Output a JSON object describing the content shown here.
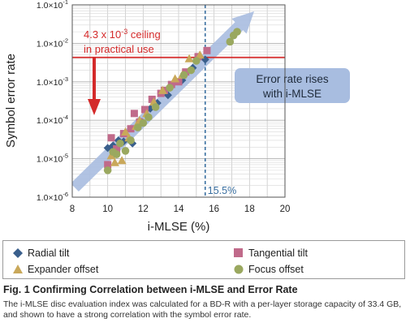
{
  "chart_data": {
    "type": "scatter",
    "xlabel": "i-MLSE (%)",
    "ylabel": "Symbol error rate",
    "x_ticks": [
      "8",
      "10",
      "12",
      "14",
      "16",
      "18",
      "20"
    ],
    "y_tick_labels": [
      {
        "exp": -1,
        "label": "1.0×10",
        "sup": "-1"
      },
      {
        "exp": -2,
        "label": "1.0×10",
        "sup": "-2"
      },
      {
        "exp": -3,
        "label": "1.0×10",
        "sup": "-3"
      },
      {
        "exp": -4,
        "label": "1.0×10",
        "sup": "-4"
      },
      {
        "exp": -5,
        "label": "1.0×10",
        "sup": "-5"
      },
      {
        "exp": -6,
        "label": "1.0×10",
        "sup": "-6"
      }
    ],
    "xlim": [
      8,
      20
    ],
    "ylim": [
      1e-06,
      0.1
    ],
    "y_scale": "log",
    "grid": true,
    "legend_position": "below",
    "ceiling_value": 0.0043,
    "ceiling_text_line1": "4.3 x 10",
    "ceiling_text_sup": "-3",
    "ceiling_text_suffix": " ceiling",
    "ceiling_text_line2": "in practical use",
    "threshold_x": 15.5,
    "threshold_label": "15.5%",
    "trend_label_line1": "Error rate rises",
    "trend_label_line2": "with i-MLSE",
    "colors": {
      "radial": "#3a5f8c",
      "tangential": "#c06a8a",
      "expander": "#c9a85a",
      "focus": "#9aa85f",
      "ceiling": "#d42a2a",
      "threshold": "#3a6fa0",
      "trend": "#a8bde0"
    },
    "series": [
      {
        "name": "Radial tilt",
        "marker": "diamond",
        "points": [
          [
            10.0,
            1.9e-05
          ],
          [
            10.3,
            2.2e-05
          ],
          [
            10.6,
            3e-05
          ],
          [
            11.4,
            2.5e-05
          ],
          [
            11.9,
            9e-05
          ],
          [
            12.4,
            0.0002
          ],
          [
            13.4,
            0.00045
          ],
          [
            14.2,
            0.0011
          ],
          [
            14.8,
            0.0023
          ],
          [
            15.5,
            0.0038
          ],
          [
            10.9,
            2.8e-05
          ],
          [
            12.8,
            0.00028
          ]
        ]
      },
      {
        "name": "Tangential tilt",
        "marker": "square",
        "points": [
          [
            10.0,
            7e-06
          ],
          [
            10.2,
            3.5e-05
          ],
          [
            10.5,
            1.8e-05
          ],
          [
            10.9,
            4.5e-05
          ],
          [
            11.3,
            6e-05
          ],
          [
            11.5,
            0.00015
          ],
          [
            12.1,
            0.00019
          ],
          [
            12.5,
            0.00035
          ],
          [
            13.2,
            0.0006
          ],
          [
            13.6,
            0.00085
          ],
          [
            14.0,
            0.001
          ],
          [
            14.4,
            0.0018
          ],
          [
            15.1,
            0.0045
          ],
          [
            15.6,
            0.0065
          ],
          [
            11.8,
            9e-05
          ],
          [
            13.0,
            0.0005
          ]
        ]
      },
      {
        "name": "Expander offset",
        "marker": "triangle",
        "points": [
          [
            10.2,
            1.2e-05
          ],
          [
            10.4,
            8e-06
          ],
          [
            10.8,
            9e-06
          ],
          [
            11.0,
            5e-05
          ],
          [
            11.2,
            3.5e-05
          ],
          [
            11.6,
            7e-05
          ],
          [
            11.8,
            0.0001
          ],
          [
            12.2,
            0.00015
          ],
          [
            12.6,
            0.0003
          ],
          [
            13.1,
            0.0006
          ],
          [
            13.8,
            0.0012
          ],
          [
            14.2,
            0.0015
          ],
          [
            14.6,
            0.004
          ],
          [
            15.2,
            0.005
          ]
        ]
      },
      {
        "name": "Focus offset",
        "marker": "circle",
        "points": [
          [
            10.0,
            5e-06
          ],
          [
            10.3,
            1.5e-05
          ],
          [
            10.7,
            2.5e-05
          ],
          [
            11.0,
            1.6e-05
          ],
          [
            11.3,
            3e-05
          ],
          [
            11.7,
            6.5e-05
          ],
          [
            12.0,
            8.5e-05
          ],
          [
            12.3,
            0.00012
          ],
          [
            12.7,
            0.00022
          ],
          [
            13.5,
            0.0007
          ],
          [
            14.3,
            0.0015
          ],
          [
            14.7,
            0.002
          ],
          [
            15.0,
            0.0035
          ],
          [
            16.9,
            0.011
          ],
          [
            17.1,
            0.016
          ],
          [
            17.3,
            0.02
          ],
          [
            10.5,
            1.3e-05
          ]
        ]
      }
    ]
  },
  "legend": {
    "radial": "Radial tilt",
    "tangential": "Tangential tilt",
    "expander": "Expander offset",
    "focus": "Focus offset"
  },
  "caption": {
    "title": "Fig. 1 Confirming Correlation between i-MLSE and Error Rate",
    "body": "The i-MLSE disc evaluation index was calculated for a BD-R with a per-layer storage capacity of 33.4 GB, and shown to have a strong correlation with the symbol error rate."
  }
}
